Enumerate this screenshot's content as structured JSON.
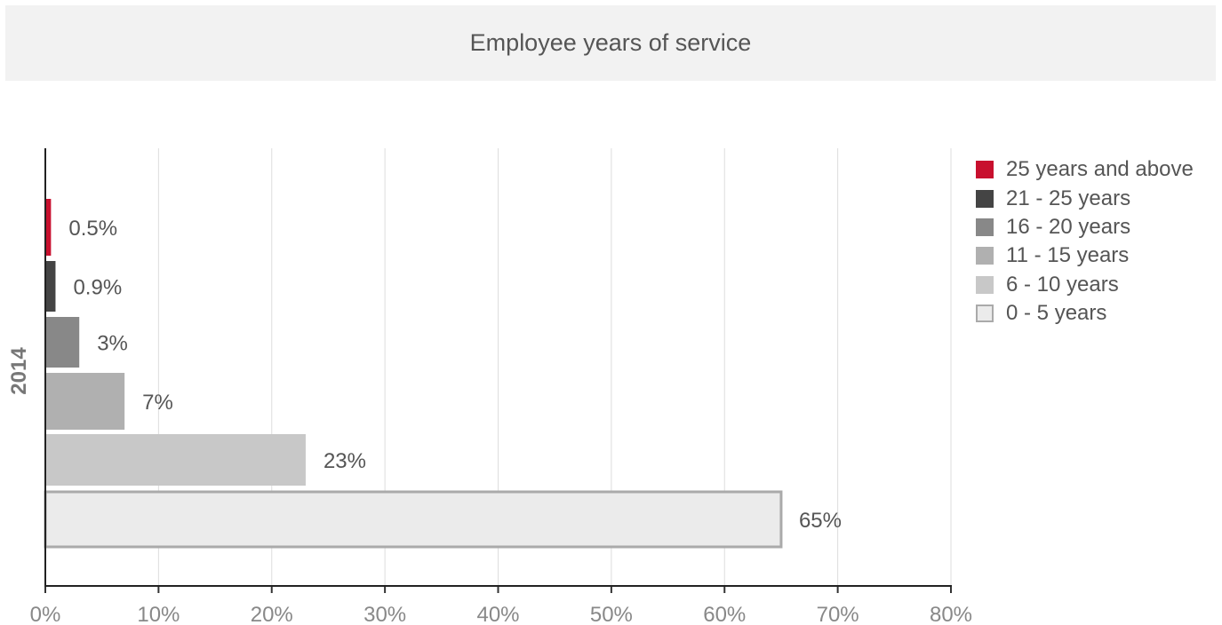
{
  "title": "Employee years of service",
  "chart_data": {
    "type": "bar",
    "orientation": "horizontal",
    "title": "Employee years of service",
    "categories": [
      "2014"
    ],
    "series": [
      {
        "name": "25 years and above",
        "values": [
          0.5
        ],
        "label": "0.5%",
        "color": "#c8102e"
      },
      {
        "name": "21 - 25 years",
        "values": [
          0.9
        ],
        "label": "0.9%",
        "color": "#444444"
      },
      {
        "name": "16 - 20 years",
        "values": [
          3
        ],
        "label": "3%",
        "color": "#888888"
      },
      {
        "name": "11 - 15 years",
        "values": [
          7
        ],
        "label": "7%",
        "color": "#b0b0b0"
      },
      {
        "name": "6 - 10 years",
        "values": [
          23
        ],
        "label": "23%",
        "color": "#c8c8c8"
      },
      {
        "name": "0 - 5 years",
        "values": [
          65
        ],
        "label": "65%",
        "color": "#ebebeb",
        "stroke": "#aaaaaa"
      }
    ],
    "xlim": [
      0,
      80
    ],
    "xticks": [
      "0%",
      "10%",
      "20%",
      "30%",
      "40%",
      "50%",
      "60%",
      "70%",
      "80%"
    ],
    "grid": "vertical",
    "legend": "top-right"
  }
}
